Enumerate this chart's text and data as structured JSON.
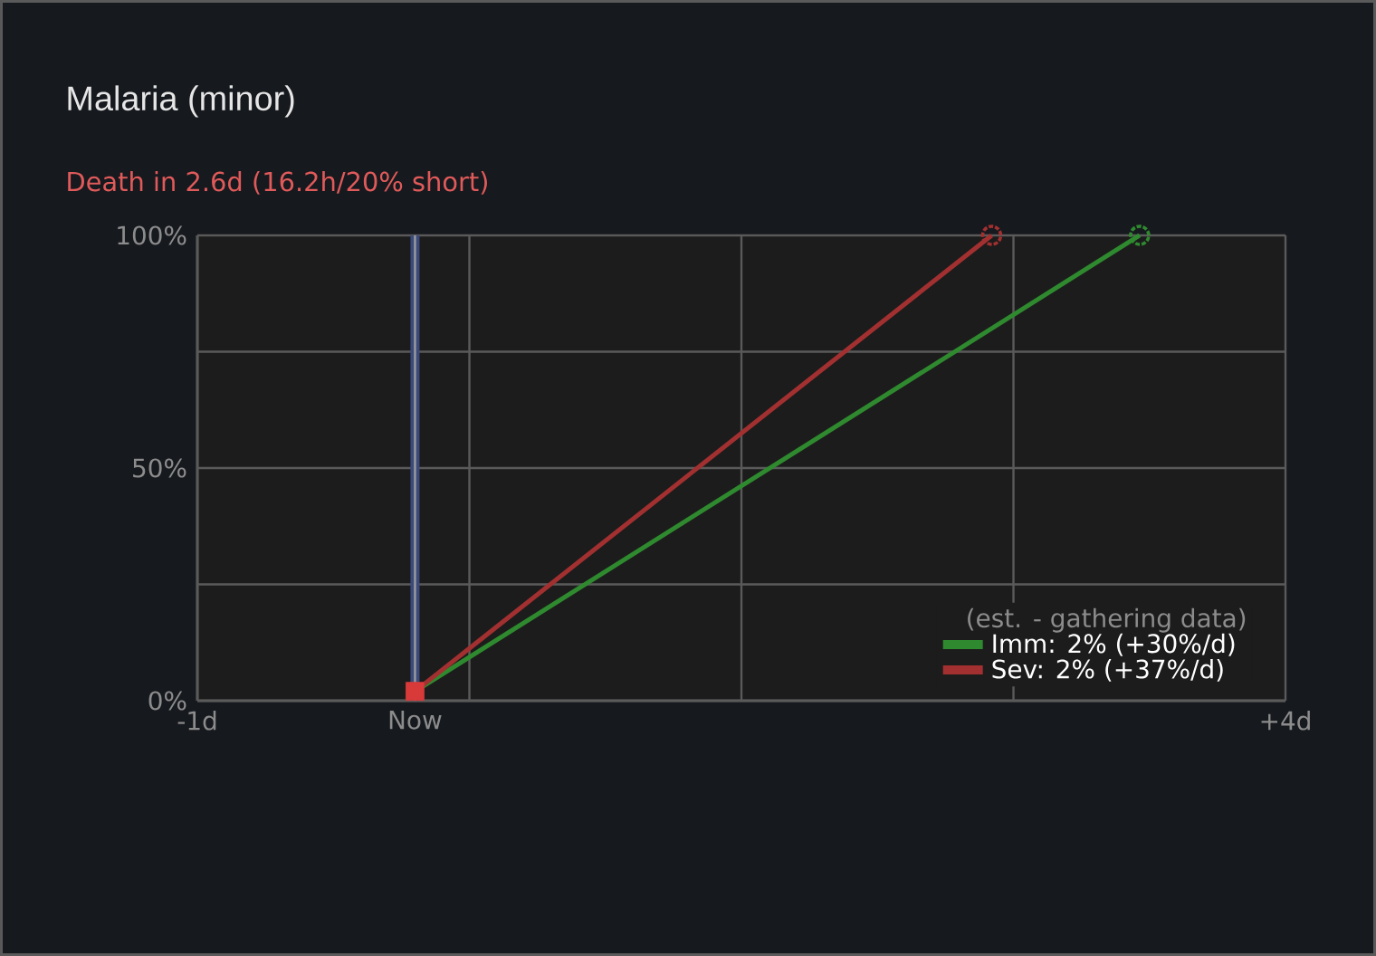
{
  "chart_data": {
    "type": "line",
    "title": "Malaria (minor)",
    "subtitle": "Death in 2.6d (16.2h/20% short)",
    "legend_title": "(est. - gathering data)",
    "xlim": [
      -1,
      4
    ],
    "ylim": [
      0,
      100
    ],
    "xticks": [
      {
        "value": -1,
        "label": "-1d"
      },
      {
        "value": 0,
        "label": "Now"
      },
      {
        "value": 0.25,
        "label": null
      },
      {
        "value": 1.5,
        "label": null
      },
      {
        "value": 2.75,
        "label": null
      },
      {
        "value": 4,
        "label": "+4d"
      }
    ],
    "yticks": [
      {
        "value": 0,
        "label": "0%"
      },
      {
        "value": 25,
        "label": null
      },
      {
        "value": 50,
        "label": "50%"
      },
      {
        "value": 75,
        "label": null
      },
      {
        "value": 100,
        "label": "100%"
      }
    ],
    "grid": true,
    "legend": "bottom right",
    "marker": "circle",
    "line_style": "solid",
    "series": [
      {
        "name": "Imm: 2% (+30%/d)",
        "color": "#2f8a2f",
        "x": [
          0,
          3.33
        ],
        "values": [
          2,
          100
        ]
      },
      {
        "name": "Sev: 2% (+37%/d)",
        "color": "#a23030",
        "x": [
          0,
          2.65
        ],
        "values": [
          2,
          100
        ]
      },
      {
        "type": "scatter",
        "marker": "square",
        "color": "#d83a3a",
        "x": [
          0
        ],
        "values": [
          2
        ]
      }
    ],
    "ref_lines": [
      {
        "axis": "x",
        "value": 0,
        "color": "#3b4a7a"
      }
    ]
  }
}
